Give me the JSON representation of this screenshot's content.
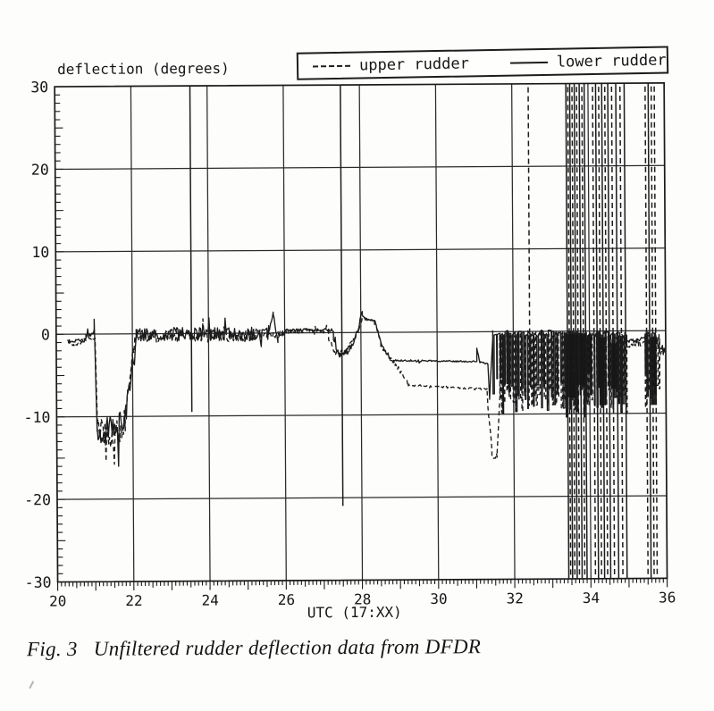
{
  "caption": {
    "fig_label": "Fig. 3",
    "text": "Unfiltered rudder deflection data from DFDR"
  },
  "chart_data": {
    "type": "line",
    "title": "deflection (degrees)",
    "xlabel": "UTC (17:XX)",
    "ylabel": "deflection (degrees)",
    "xlim": [
      20,
      36
    ],
    "ylim": [
      -30,
      30
    ],
    "xticks": [
      20,
      22,
      24,
      26,
      28,
      30,
      32,
      34,
      36
    ],
    "xtick_labels": [
      "20",
      "22",
      "24",
      "26",
      "28",
      "30",
      "32",
      "34",
      "36"
    ],
    "yticks": [
      30,
      20,
      10,
      0,
      -10,
      -20,
      -30
    ],
    "ytick_labels": [
      "30",
      "20",
      "10",
      "0",
      "-10",
      "-20",
      "-30"
    ],
    "x_minor_step": 0.1,
    "y_minor_step": 1,
    "grid": true,
    "legend_position": "top",
    "stroke_color": "#1c1c1c",
    "grid_color": "#2b2b2b",
    "series": [
      {
        "name": "lower rudder",
        "style": "solid",
        "segments": [
          [
            20.32,
            -0.9,
            20.78,
            -0.7,
            0.25,
            0
          ],
          [
            20.78,
            -0.4,
            21.0,
            0.3,
            0.35,
            0
          ],
          [
            21.0,
            1.8,
            21.06,
            -11.8,
            0,
            0
          ],
          [
            21.06,
            -11.5,
            21.5,
            -11.6,
            1.9,
            0
          ],
          [
            21.5,
            -12.3,
            21.83,
            -9.6,
            1.8,
            0
          ],
          [
            21.83,
            -9.2,
            22.1,
            -0.6,
            1.1,
            0
          ],
          [
            22.1,
            0,
            25.58,
            -0.1,
            0.85,
            0
          ],
          [
            25.58,
            0,
            25.7,
            2.4,
            0.2,
            0
          ],
          [
            25.7,
            2.4,
            25.82,
            -1.2,
            0.2,
            0
          ],
          [
            25.82,
            -0.4,
            26.02,
            0.2,
            0.3,
            0
          ],
          [
            26.02,
            0.35,
            27.28,
            0.3,
            0.2,
            0
          ],
          [
            27.28,
            -1.2,
            27.46,
            -2.8,
            0.5,
            0
          ],
          [
            27.46,
            -2.8,
            27.76,
            -1.8,
            0.45,
            0
          ],
          [
            27.76,
            -1.5,
            27.96,
            0.8,
            0.35,
            0
          ],
          [
            27.96,
            1,
            28.04,
            2.6,
            0.25,
            0
          ],
          [
            28.04,
            2.2,
            28.12,
            1.6,
            0.15,
            0
          ],
          [
            28.12,
            1.6,
            28.38,
            1.4,
            0.12,
            0
          ],
          [
            28.38,
            1.2,
            28.52,
            -1.2,
            0.25,
            0
          ],
          [
            28.52,
            -1.5,
            28.76,
            -3.1,
            0.25,
            0
          ],
          [
            28.76,
            -3.4,
            31.04,
            -3.6,
            0.1,
            0
          ],
          [
            31.04,
            -2.1,
            31.12,
            -3.7,
            0.12,
            0
          ],
          [
            31.12,
            -3.7,
            31.33,
            -3.9,
            0.1,
            0
          ],
          [
            31.33,
            -3.9,
            31.37,
            -8.2,
            0,
            0
          ],
          [
            31.37,
            -8,
            31.46,
            -1,
            0.4,
            0
          ],
          [
            31.46,
            -0.2,
            33.38,
            -7.8,
            0,
            1
          ],
          [
            33.38,
            -0.4,
            34.94,
            -8.4,
            0,
            1
          ],
          [
            34.94,
            -1.3,
            35.46,
            -1.0,
            0.25,
            0
          ],
          [
            35.46,
            -0.4,
            35.8,
            -7.5,
            0,
            1
          ],
          [
            35.8,
            -1.8,
            35.98,
            -2.2,
            0.35,
            0
          ]
        ]
      },
      {
        "name": "upper rudder",
        "style": "dashed",
        "segments": [
          [
            20.3,
            -0.8,
            20.48,
            -1.4,
            0.15,
            0
          ],
          [
            20.48,
            -1.5,
            20.78,
            -0.6,
            0.2,
            0
          ],
          [
            20.78,
            -0.5,
            21.02,
            -0.5,
            0.2,
            0
          ],
          [
            21.02,
            -0.5,
            21.07,
            -11,
            0,
            0
          ],
          [
            21.07,
            -11,
            21.46,
            -12.3,
            1.6,
            0
          ],
          [
            21.46,
            -12.8,
            21.8,
            -10.5,
            1.6,
            0
          ],
          [
            21.8,
            -10,
            22.06,
            -1,
            0.9,
            0
          ],
          [
            22.06,
            -0.3,
            25.6,
            -0.2,
            0.8,
            0
          ],
          [
            25.6,
            -0.2,
            26.0,
            -0.1,
            0.5,
            0
          ],
          [
            26.0,
            0.2,
            27.15,
            0.2,
            0.25,
            0
          ],
          [
            27.15,
            -0.8,
            27.35,
            -2.6,
            0.4,
            0
          ],
          [
            27.35,
            -2.6,
            27.65,
            -2.2,
            0.4,
            0
          ],
          [
            27.65,
            -2,
            27.95,
            0.3,
            0.3,
            0
          ],
          [
            27.95,
            0.5,
            28.06,
            1.8,
            0.2,
            0
          ],
          [
            28.06,
            1.8,
            28.36,
            1.4,
            0.15,
            0
          ],
          [
            28.36,
            1.2,
            28.56,
            -1.6,
            0.2,
            0
          ],
          [
            28.56,
            -1.8,
            29.25,
            -6.2,
            0.3,
            0
          ],
          [
            29.25,
            -6.4,
            31.3,
            -7.0,
            0.12,
            0
          ],
          [
            31.3,
            -7.2,
            31.42,
            -14.5,
            0.6,
            0
          ],
          [
            31.42,
            -15,
            31.56,
            -15.1,
            0.4,
            0
          ],
          [
            31.56,
            -14.8,
            31.64,
            -7.5,
            0.4,
            0
          ],
          [
            31.64,
            -0.4,
            33.38,
            -7.6,
            0,
            1
          ],
          [
            33.38,
            -0.5,
            34.98,
            -8,
            0,
            1
          ],
          [
            34.98,
            -1.8,
            35.46,
            -1.5,
            0.3,
            0
          ],
          [
            35.46,
            -0.6,
            35.84,
            -8,
            0,
            1
          ],
          [
            35.84,
            -2.6,
            35.98,
            -2.4,
            0.4,
            0
          ]
        ]
      }
    ],
    "offscale_spikes": [
      [
        23.55,
        0,
        35,
        -9.5
      ],
      [
        27.5,
        0,
        35,
        -21
      ],
      [
        32.43,
        1,
        35,
        -6
      ],
      [
        33.42,
        0,
        35,
        -35
      ],
      [
        33.47,
        1,
        35,
        -35
      ],
      [
        33.52,
        0,
        35,
        -35
      ],
      [
        33.58,
        1,
        35,
        -35
      ],
      [
        33.64,
        0,
        35,
        -35
      ],
      [
        33.7,
        1,
        35,
        -35
      ],
      [
        33.77,
        0,
        35,
        -35
      ],
      [
        33.84,
        1,
        35,
        -35
      ],
      [
        33.9,
        0,
        35,
        -35
      ],
      [
        34.12,
        1,
        35,
        -35
      ],
      [
        34.2,
        0,
        35,
        -35
      ],
      [
        34.28,
        1,
        35,
        -35
      ],
      [
        34.36,
        0,
        35,
        -35
      ],
      [
        34.44,
        1,
        35,
        -35
      ],
      [
        34.52,
        0,
        35,
        -35
      ],
      [
        34.62,
        1,
        35,
        -35
      ],
      [
        34.73,
        0,
        35,
        -35
      ],
      [
        34.84,
        1,
        35,
        -35
      ],
      [
        34.95,
        0,
        35,
        -35
      ],
      [
        35.5,
        1,
        35,
        -35
      ],
      [
        35.58,
        0,
        35,
        -35
      ],
      [
        35.66,
        1,
        35,
        -35
      ],
      [
        35.74,
        1,
        35,
        -35
      ]
    ],
    "ink_blobs": [
      [
        33.4,
        33.62,
        -0.3,
        -8.0
      ],
      [
        33.64,
        33.9,
        -0.3,
        -6.5
      ],
      [
        33.93,
        34.06,
        -0.5,
        -5.0
      ],
      [
        34.25,
        34.42,
        -0.8,
        -9.0
      ],
      [
        34.55,
        34.72,
        -1.5,
        -7.0
      ],
      [
        35.6,
        35.76,
        -0.8,
        -9.0
      ]
    ]
  }
}
